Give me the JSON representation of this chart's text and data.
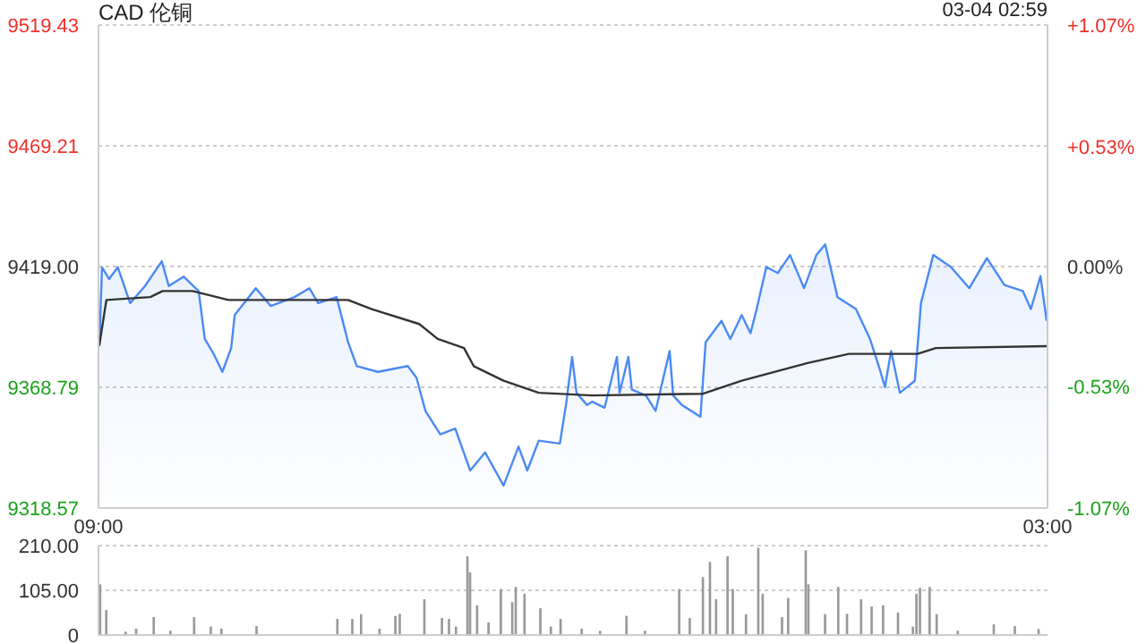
{
  "chart_data": [
    {
      "type": "area",
      "title": "CAD 伦铜",
      "annotations": [
        "03-04 02:59"
      ],
      "xlim": [
        "--03-03T09:00",
        "--03-04T03:00"
      ],
      "xticks": [
        {
          "value": "--03-03T09:00",
          "label": "09:00"
        },
        {
          "value": "--03-04T03:00",
          "label": "03:00"
        }
      ],
      "ylim": [
        9318.57,
        9519.43
      ],
      "yticks": [
        9318.57,
        9368.79,
        {
          "value": 9419,
          "label": "9419.00"
        },
        9469.21,
        9519.43
      ],
      "y2lim": [
        -1.07,
        1.07
      ],
      "y2ticks": [
        {
          "value": -1.07,
          "label": "-1.07%"
        },
        {
          "value": -0.53,
          "label": "-0.53%"
        },
        {
          "value": 0,
          "label": "0.00%"
        },
        {
          "value": 0.53,
          "label": "+0.53%"
        },
        {
          "value": 1.07,
          "label": "+1.07%"
        }
      ],
      "grid": "y",
      "series": [
        {
          "color": "#4a8af4",
          "x": [
            "--03-03T09:01",
            "--03-03T09:04",
            "--03-03T09:12",
            "--03-03T09:22",
            "--03-03T09:36",
            "--03-03T09:53",
            "--03-03T10:12",
            "--03-03T10:20",
            "--03-03T10:37",
            "--03-03T10:54",
            "--03-03T11:01",
            "--03-03T11:11",
            "--03-03T11:21",
            "--03-03T11:31",
            "--03-03T11:35",
            "--03-03T11:59",
            "--03-03T12:16",
            "--03-03T12:43",
            "--03-03T13:00",
            "--03-03T13:10",
            "--03-03T13:31",
            "--03-03T13:44",
            "--03-03T13:54",
            "--03-03T14:18",
            "--03-03T14:52",
            "--03-03T15:02",
            "--03-03T15:12",
            "--03-03T15:29",
            "--03-03T15:46",
            "--03-03T16:03",
            "--03-03T16:20",
            "--03-03T16:41",
            "--03-03T16:58",
            "--03-03T17:08",
            "--03-03T17:21",
            "--03-03T17:45",
            "--03-03T17:52",
            "--03-03T17:59",
            "--03-03T18:04",
            "--03-03T18:16",
            "--03-03T18:22",
            "--03-03T18:36",
            "--03-03T18:50",
            "--03-03T18:53",
            "--03-03T19:03",
            "--03-03T19:07",
            "--03-03T19:23",
            "--03-03T19:34",
            "--03-03T19:50",
            "--03-03T19:54",
            "--03-03T20:04",
            "--03-03T20:25",
            "--03-03T20:31",
            "--03-03T20:49",
            "--03-03T20:59",
            "--03-03T21:12",
            "--03-03T21:22",
            "--03-03T21:29",
            "--03-03T21:40",
            "--03-03T21:53",
            "--03-03T22:07",
            "--03-03T22:23",
            "--03-03T22:37",
            "--03-03T22:47",
            "--03-03T23:01",
            "--03-03T23:22",
            "--03-03T23:38",
            "--03-03T23:49",
            "--03-03T23:55",
            "--03-04T00:02",
            "--03-04T00:12",
            "--03-04T00:29",
            "--03-04T00:36",
            "--03-04T00:50",
            "--03-04T01:10",
            "--03-04T01:31",
            "--03-04T01:51",
            "--03-04T02:11",
            "--03-04T02:32",
            "--03-04T02:41",
            "--03-04T02:52",
            "--03-04T02:59"
          ],
          "values": [
            9386.3,
            9418.7,
            9413.8,
            9418.7,
            9403.8,
            9410.9,
            9421.2,
            9410.9,
            9414.8,
            9408.8,
            9388.9,
            9382.7,
            9375.2,
            9385.1,
            9398.8,
            9410.0,
            9402.6,
            9406.3,
            9410.0,
            9403.8,
            9406.3,
            9387.6,
            9377.6,
            9375.2,
            9377.6,
            9372.7,
            9359.0,
            9349.2,
            9351.6,
            9334.2,
            9341.7,
            9327.9,
            9344.1,
            9334.2,
            9346.6,
            9345.4,
            9361.4,
            9381.4,
            9366.5,
            9361.4,
            9362.8,
            9360.3,
            9381.4,
            9366.5,
            9381.4,
            9367.8,
            9365.4,
            9359.0,
            9383.9,
            9365.4,
            9361.4,
            9356.5,
            9387.6,
            9396.4,
            9388.9,
            9398.8,
            9391.3,
            9401.3,
            9418.8,
            9416.3,
            9423.8,
            9410.0,
            9423.8,
            9428.2,
            9406.3,
            9401.3,
            9388.9,
            9376.4,
            9368.9,
            9383.9,
            9366.5,
            9371.5,
            9403.8,
            9423.8,
            9418.8,
            9410.0,
            9422.5,
            9411.3,
            9408.8,
            9401.3,
            9415.0,
            9396.4
          ]
        },
        {
          "type": "line",
          "color": "#333333",
          "x": [
            "--03-03T09:01",
            "--03-03T09:09",
            "--03-03T09:59",
            "--03-03T10:13",
            "--03-03T10:47",
            "--03-03T11:28",
            "--03-03T13:44",
            "--03-03T14:11",
            "--03-03T15:05",
            "--03-03T15:26",
            "--03-03T15:56",
            "--03-03T16:07",
            "--03-03T16:41",
            "--03-03T17:21",
            "--03-03T18:22",
            "--03-03T20:28",
            "--03-03T21:12",
            "--03-03T22:27",
            "--03-03T23:14",
            "--03-04T00:32",
            "--03-04T00:53",
            "--03-04T02:59"
          ],
          "values": [
            9386.3,
            9405.1,
            9406.3,
            9408.8,
            9408.8,
            9405.1,
            9405.1,
            9401.3,
            9395.1,
            9388.9,
            9385.1,
            9377.6,
            9371.5,
            9366.5,
            9365.4,
            9366.1,
            9371.5,
            9378.9,
            9382.7,
            9382.7,
            9385.1,
            9385.9
          ]
        }
      ]
    },
    {
      "type": "bar",
      "xlim": [
        "--03-03T09:00",
        "--03-04T03:00"
      ],
      "tick_labels": "y",
      "ylim": [
        0,
        210
      ],
      "yticks": [
        0,
        {
          "value": 105,
          "label": "105.00"
        },
        {
          "value": 210,
          "label": "210.00"
        }
      ],
      "grid": "y",
      "x": [
        "--03-03T09:02",
        "--03-03T09:09",
        "--03-03T09:31",
        "--03-03T09:43",
        "--03-03T10:03",
        "--03-03T10:22",
        "--03-03T10:49",
        "--03-03T11:08",
        "--03-03T11:20",
        "--03-03T12:00",
        "--03-03T12:34",
        "--03-03T13:05",
        "--03-03T13:32",
        "--03-03T13:49",
        "--03-03T13:59",
        "--03-03T14:20",
        "--03-03T14:38",
        "--03-03T14:43",
        "--03-03T15:11",
        "--03-03T15:31",
        "--03-03T15:39",
        "--03-03T15:47",
        "--03-03T16:00",
        "--03-03T16:03",
        "--03-03T16:11",
        "--03-03T16:24",
        "--03-03T16:38",
        "--03-03T16:51",
        "--03-03T16:55",
        "--03-03T17:05",
        "--03-03T17:23",
        "--03-03T17:35",
        "--03-03T17:46",
        "--03-03T18:10",
        "--03-03T18:31",
        "--03-03T19:01",
        "--03-03T19:22",
        "--03-03T20:01",
        "--03-03T20:13",
        "--03-03T20:28",
        "--03-03T20:36",
        "--03-03T20:43",
        "--03-03T20:56",
        "--03-03T21:02",
        "--03-03T21:17",
        "--03-03T21:31",
        "--03-03T21:36",
        "--03-03T21:58",
        "--03-03T22:05",
        "--03-03T22:25",
        "--03-03T22:28",
        "--03-03T22:47",
        "--03-03T23:02",
        "--03-03T23:12",
        "--03-03T23:28",
        "--03-03T23:40",
        "--03-03T23:53",
        "--03-04T00:10",
        "--03-04T00:27",
        "--03-04T00:31",
        "--03-04T00:35",
        "--03-04T00:46",
        "--03-04T00:54",
        "--03-04T01:18",
        "--03-04T01:59",
        "--03-04T02:23",
        "--03-04T02:50"
      ],
      "series": [
        {
          "color": "#999999",
          "values": [
            119,
            59,
            8,
            15,
            42,
            10,
            42,
            20,
            15,
            21,
            null,
            null,
            38,
            38,
            49,
            15,
            45,
            50,
            84,
            40,
            38,
            20,
            185,
            147,
            70,
            30,
            108,
            77,
            113,
            97,
            63,
            20,
            38,
            15,
            10,
            45,
            10,
            108,
            40,
            136,
            172,
            84,
            185,
            108,
            49,
            205,
            97,
            42,
            87,
            199,
            119,
            49,
            113,
            50,
            84,
            67,
            70,
            53,
            20,
            97,
            111,
            113,
            49,
            10,
            25,
            21,
            14
          ]
        }
      ]
    }
  ]
}
